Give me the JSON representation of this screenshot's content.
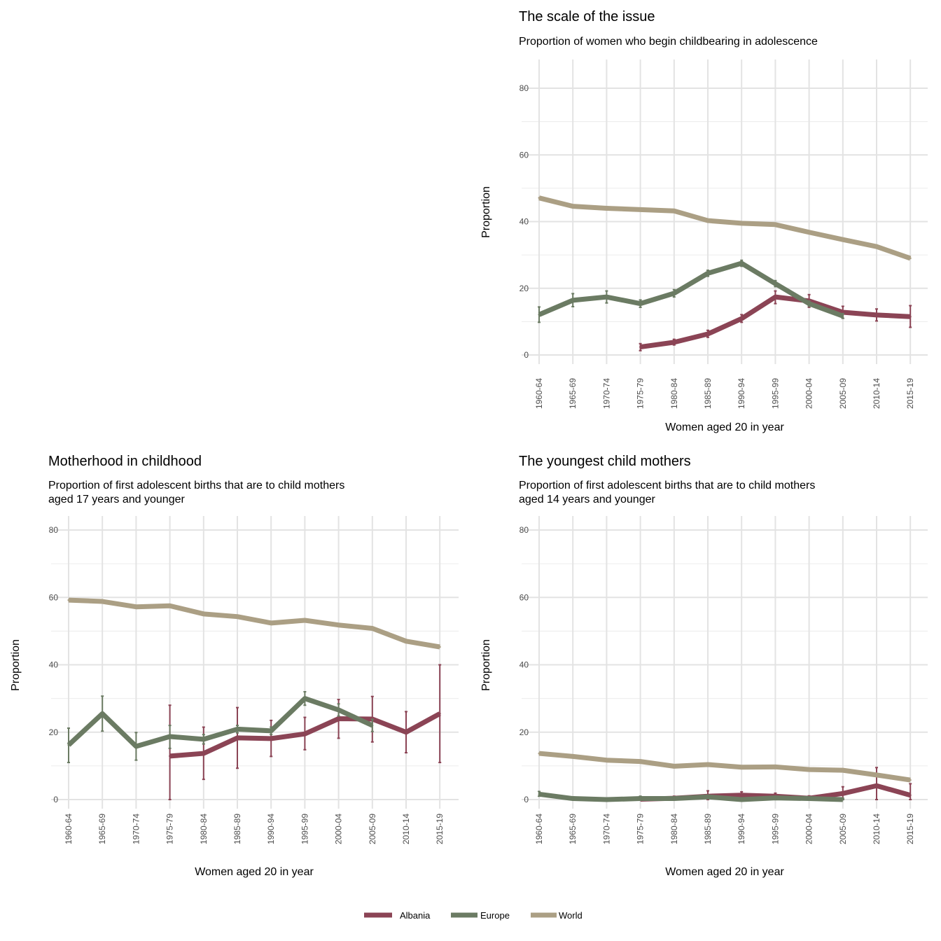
{
  "colors": {
    "Albania": "#8b4455",
    "Europe": "#6b7b63",
    "World": "#ab9f84"
  },
  "legend": {
    "position": "bottom",
    "items": [
      "Albania",
      "Europe",
      "World"
    ]
  },
  "chart_data": [
    {
      "type": "line",
      "title": "The scale of the issue",
      "subtitle": "Proportion of women who begin childbearing in adolescence",
      "xlabel": "Women aged 20 in year",
      "ylabel": "Proportion",
      "ylim": [
        0,
        80
      ],
      "yticks": [
        "0",
        "20",
        "40",
        "60",
        "80"
      ],
      "grid": true,
      "categories": [
        "1960-64",
        "1965-69",
        "1970-74",
        "1975-79",
        "1980-84",
        "1985-89",
        "1990-94",
        "1995-99",
        "2000-04",
        "2005-09",
        "2010-14",
        "2015-19"
      ],
      "series": [
        {
          "name": "Albania",
          "values": [
            null,
            null,
            null,
            2.4,
            3.8,
            6.3,
            10.9,
            17.4,
            16.2,
            12.8,
            12.0,
            11.5
          ],
          "lower": [
            null,
            null,
            null,
            1.3,
            3.0,
            5.3,
            9.8,
            15.4,
            14.3,
            11.0,
            10.2,
            8.3
          ],
          "upper": [
            null,
            null,
            null,
            3.4,
            4.7,
            7.4,
            12.1,
            19.2,
            18.1,
            14.6,
            13.8,
            14.8
          ]
        },
        {
          "name": "Europe",
          "values": [
            12.1,
            16.4,
            17.4,
            15.4,
            18.5,
            24.5,
            27.5,
            21.4,
            15.4,
            11.7,
            null,
            null
          ],
          "lower": [
            9.8,
            14.5,
            15.6,
            14.3,
            17.4,
            23.6,
            26.6,
            20.5,
            14.6,
            11.0,
            null,
            null
          ],
          "upper": [
            14.4,
            18.4,
            19.2,
            16.5,
            19.6,
            25.4,
            28.4,
            22.3,
            16.2,
            12.4,
            null,
            null
          ]
        },
        {
          "name": "World",
          "values": [
            47.1,
            44.6,
            44.0,
            43.6,
            43.2,
            40.3,
            39.5,
            39.1,
            36.8,
            34.6,
            32.5,
            29.0
          ]
        }
      ]
    },
    {
      "type": "line",
      "title": "Motherhood in childhood",
      "subtitle": [
        "Proportion of first adolescent births that are to child mothers",
        "aged 17 years and younger"
      ],
      "xlabel": "Women aged 20 in year",
      "ylabel": "Proportion",
      "ylim": [
        0,
        80
      ],
      "yticks": [
        "0",
        "20",
        "40",
        "60",
        "80"
      ],
      "grid": true,
      "categories": [
        "1960-64",
        "1965-69",
        "1970-74",
        "1975-79",
        "1980-84",
        "1985-89",
        "1990-94",
        "1995-99",
        "2000-04",
        "2005-09",
        "2010-14",
        "2015-19"
      ],
      "series": [
        {
          "name": "Albania",
          "values": [
            null,
            null,
            null,
            12.9,
            13.7,
            18.3,
            18.1,
            19.5,
            24.0,
            23.9,
            20.0,
            25.5
          ],
          "lower": [
            null,
            null,
            null,
            0.0,
            6.0,
            9.3,
            12.8,
            14.8,
            18.2,
            17.1,
            13.9,
            11.0
          ],
          "upper": [
            null,
            null,
            null,
            28.0,
            21.5,
            27.3,
            23.5,
            24.4,
            29.7,
            30.6,
            26.1,
            40.0
          ]
        },
        {
          "name": "Europe",
          "values": [
            16.2,
            25.5,
            15.8,
            18.7,
            17.9,
            20.9,
            20.4,
            30.0,
            26.6,
            22.0,
            null,
            null
          ],
          "lower": [
            11.0,
            20.3,
            11.7,
            15.2,
            16.5,
            19.8,
            19.3,
            28.0,
            24.8,
            20.2,
            null,
            null
          ],
          "upper": [
            21.2,
            30.7,
            19.9,
            22.0,
            19.3,
            22.0,
            21.5,
            32.0,
            28.4,
            23.8,
            null,
            null
          ]
        },
        {
          "name": "World",
          "values": [
            59.2,
            58.8,
            57.2,
            57.5,
            55.1,
            54.3,
            52.4,
            53.2,
            51.8,
            50.8,
            47.0,
            45.3
          ]
        }
      ]
    },
    {
      "type": "line",
      "title": "The youngest child mothers",
      "subtitle": [
        "Proportion of first adolescent births that are to child mothers",
        "aged 14 years and younger"
      ],
      "xlabel": "Women aged 20 in year",
      "ylabel": "Proportion",
      "ylim": [
        0,
        80
      ],
      "yticks": [
        "0",
        "20",
        "40",
        "60",
        "80"
      ],
      "grid": true,
      "categories": [
        "1960-64",
        "1965-69",
        "1970-74",
        "1975-79",
        "1980-84",
        "1985-89",
        "1990-94",
        "1995-99",
        "2000-04",
        "2005-09",
        "2010-14",
        "2015-19"
      ],
      "series": [
        {
          "name": "Albania",
          "values": [
            null,
            null,
            null,
            0.1,
            0.4,
            1.0,
            1.3,
            1.0,
            0.4,
            1.8,
            4.1,
            1.3
          ],
          "lower": [
            null,
            null,
            null,
            0.0,
            0.0,
            0.0,
            0.4,
            0.2,
            0.0,
            0.0,
            0.0,
            0.0
          ],
          "upper": [
            null,
            null,
            null,
            0.8,
            1.0,
            2.6,
            2.3,
            1.9,
            1.1,
            3.8,
            9.5,
            4.7
          ]
        },
        {
          "name": "Europe",
          "values": [
            1.6,
            0.3,
            0.0,
            0.3,
            0.3,
            0.8,
            0.0,
            0.5,
            0.3,
            0.0,
            null,
            null
          ],
          "lower": [
            1.0,
            0.0,
            0.0,
            0.0,
            0.0,
            0.4,
            0.0,
            0.2,
            0.0,
            0.0,
            null,
            null
          ],
          "upper": [
            2.4,
            0.8,
            0.4,
            1.0,
            0.7,
            1.3,
            0.5,
            1.0,
            0.7,
            0.4,
            null,
            null
          ]
        },
        {
          "name": "World",
          "values": [
            13.7,
            12.8,
            11.7,
            11.3,
            9.9,
            10.4,
            9.6,
            9.7,
            8.9,
            8.7,
            7.3,
            5.8
          ]
        }
      ]
    }
  ]
}
